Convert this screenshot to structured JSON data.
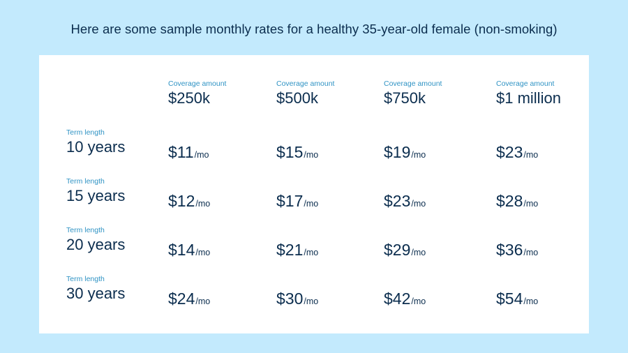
{
  "headline": "Here are some sample monthly rates for a healthy 35-year-old female (non-smoking)",
  "coverage_label": "Coverage amount",
  "term_label": "Term length",
  "unit": "/mo",
  "coverage_amounts": [
    "$250k",
    "$500k",
    "$750k",
    "$1 million"
  ],
  "rows": [
    {
      "term": "10 years",
      "prices": [
        "$11",
        "$15",
        "$19",
        "$23"
      ]
    },
    {
      "term": "15 years",
      "prices": [
        "$12",
        "$17",
        "$23",
        "$28"
      ]
    },
    {
      "term": "20 years",
      "prices": [
        "$14",
        "$21",
        "$29",
        "$36"
      ]
    },
    {
      "term": "30 years",
      "prices": [
        "$24",
        "$30",
        "$42",
        "$54"
      ]
    }
  ]
}
